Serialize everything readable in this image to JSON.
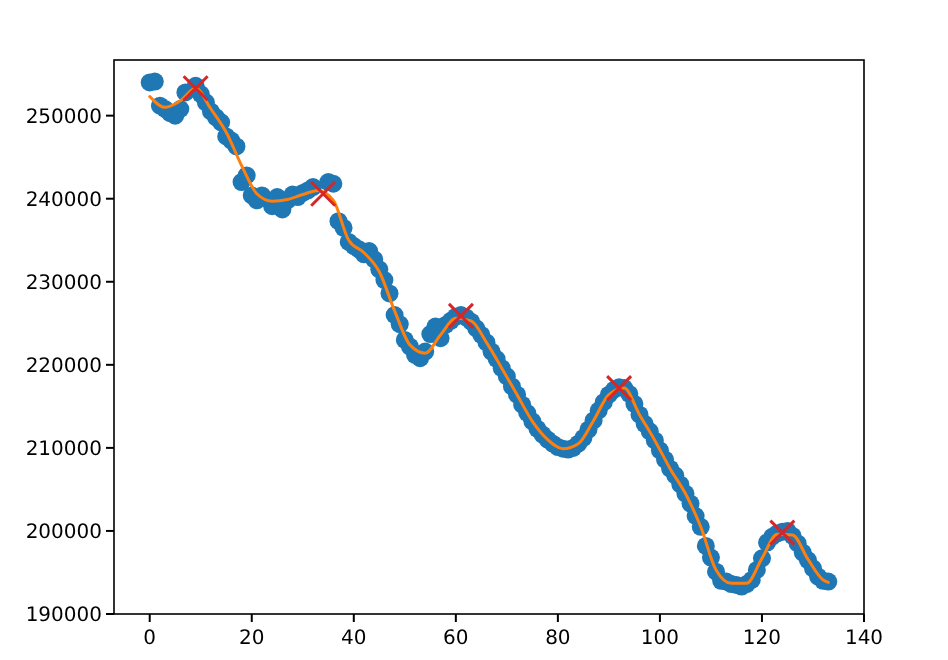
{
  "chart_data": {
    "type": "scatter",
    "xlim": [
      -7,
      140
    ],
    "ylim": [
      190000,
      256700
    ],
    "xticks": [
      0,
      20,
      40,
      60,
      80,
      100,
      120,
      140
    ],
    "yticks": [
      190000,
      200000,
      210000,
      220000,
      230000,
      240000,
      250000
    ],
    "grid": false,
    "series": [
      {
        "marker": "circle",
        "color": "#1f77b4",
        "x": [
          0,
          1,
          2,
          3,
          4,
          5,
          6,
          7,
          9,
          10,
          11,
          12,
          13,
          14,
          15,
          16,
          17,
          18,
          19,
          20,
          21,
          22,
          24,
          25,
          26,
          27,
          28,
          29,
          30,
          31,
          32,
          35,
          36,
          37,
          38,
          39,
          40,
          41,
          42,
          43,
          44,
          45,
          46,
          47,
          48,
          49,
          50,
          51,
          52,
          53,
          54,
          55,
          56,
          57,
          58,
          59,
          60,
          61,
          62,
          63,
          64,
          65,
          66,
          67,
          68,
          69,
          70,
          71,
          72,
          73,
          74,
          75,
          76,
          77,
          78,
          79,
          80,
          81,
          82,
          83,
          84,
          85,
          86,
          87,
          88,
          89,
          90,
          91,
          92,
          93,
          94,
          95,
          96,
          97,
          98,
          99,
          100,
          101,
          102,
          103,
          104,
          105,
          106,
          107,
          108,
          109,
          110,
          111,
          112,
          113,
          114,
          115,
          116,
          117,
          118,
          119,
          120,
          121,
          122,
          123,
          124,
          125,
          126,
          127,
          128,
          129,
          130,
          131,
          132,
          133
        ],
        "values": [
          254000,
          254100,
          251200,
          250800,
          250300,
          250000,
          250800,
          252800,
          253600,
          252600,
          251600,
          250500,
          249800,
          249200,
          247500,
          247000,
          246300,
          242000,
          242800,
          240400,
          239800,
          240400,
          239100,
          240200,
          238700,
          239800,
          240500,
          240200,
          240700,
          241000,
          241400,
          242000,
          241800,
          237300,
          236500,
          234800,
          234300,
          233900,
          233300,
          233700,
          232700,
          231500,
          230200,
          228600,
          226000,
          224900,
          223000,
          222200,
          221200,
          220800,
          221600,
          223700,
          224600,
          223200,
          224800,
          225300,
          225800,
          226000,
          225700,
          225200,
          224400,
          223600,
          222700,
          221600,
          220700,
          219600,
          218600,
          217400,
          216400,
          215200,
          214200,
          213200,
          212300,
          211600,
          211000,
          210500,
          210100,
          209900,
          209800,
          210000,
          210500,
          211200,
          212200,
          213300,
          214500,
          215500,
          216400,
          217000,
          217300,
          217200,
          216500,
          215300,
          214000,
          212900,
          212000,
          210900,
          209700,
          208600,
          207500,
          206700,
          205600,
          204500,
          203300,
          201800,
          200500,
          198200,
          196800,
          195100,
          194000,
          193900,
          193600,
          193500,
          193300,
          193600,
          194100,
          195300,
          196700,
          198600,
          199300,
          199700,
          199900,
          200000,
          199400,
          198500,
          197400,
          196500,
          195500,
          194500,
          194000,
          193900
        ]
      },
      {
        "type": "line",
        "marker": "none",
        "color": "#ff7f0e",
        "x": [
          0,
          3,
          6,
          9,
          12,
          15,
          18,
          21,
          24,
          27,
          30,
          33,
          36,
          39,
          42,
          45,
          48,
          51,
          54,
          57,
          60,
          63,
          66,
          69,
          72,
          75,
          78,
          81,
          84,
          87,
          90,
          93,
          96,
          99,
          102,
          105,
          108,
          111,
          114,
          117,
          120,
          123,
          126,
          129,
          132,
          133
        ],
        "values": [
          252300,
          251000,
          251800,
          253300,
          250800,
          248000,
          244000,
          240600,
          239700,
          239900,
          240500,
          241000,
          239800,
          235000,
          233500,
          231200,
          226500,
          222400,
          221400,
          223600,
          225600,
          225300,
          222700,
          219600,
          216400,
          213200,
          211000,
          209900,
          210500,
          213300,
          216400,
          217200,
          214000,
          210900,
          207500,
          204500,
          200500,
          195300,
          193700,
          193700,
          196700,
          199600,
          199500,
          196600,
          194100,
          193800
        ]
      },
      {
        "type": "scatter",
        "marker": "cross",
        "color": "#d62728",
        "x": [
          9,
          34,
          61,
          92,
          124
        ],
        "values": [
          253300,
          240600,
          225900,
          217200,
          199800
        ]
      }
    ]
  }
}
